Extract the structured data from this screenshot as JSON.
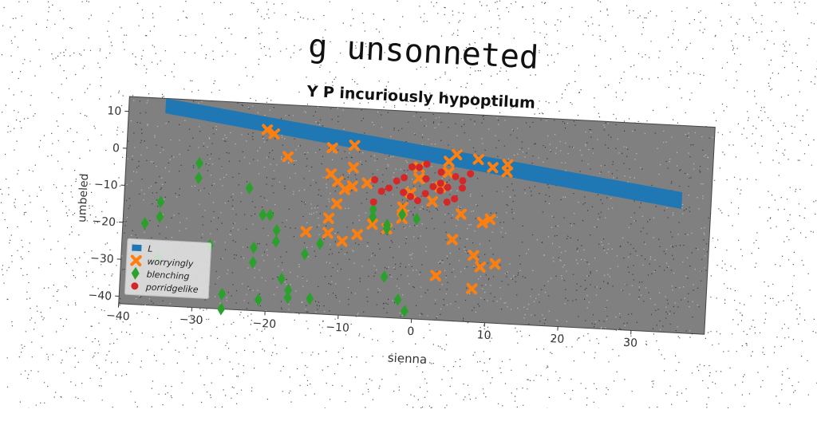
{
  "chart_data": {
    "type": "scatter",
    "title": "g unsonneted",
    "subtitle": "Y P incuriously hypoptilum",
    "xlabel": "sienna",
    "ylabel": "umbeled",
    "xlim": [
      -40,
      40
    ],
    "ylim": [
      -42,
      14
    ],
    "x_ticks": [
      -40,
      -30,
      -20,
      -10,
      0,
      10,
      20,
      30
    ],
    "y_ticks": [
      10,
      0,
      -10,
      -20,
      -30,
      -40
    ],
    "grid": false,
    "legend_position": "lower-left",
    "series": [
      {
        "name": "L",
        "kind": "band",
        "color": "#1f77b4",
        "x": [
          -35,
          36
        ],
        "y_upper": [
          14,
          -4
        ],
        "y_lower": [
          10,
          -8.5
        ]
      },
      {
        "name": "worryingly",
        "kind": "scatter",
        "marker": "x",
        "color": "#ff7f0e",
        "points": [
          [
            -21,
            7
          ],
          [
            -20,
            6
          ],
          [
            -18,
            0
          ],
          [
            -12,
            3
          ],
          [
            -9,
            4
          ],
          [
            -9,
            -2
          ],
          [
            -12,
            -4
          ],
          [
            -11,
            -6
          ],
          [
            -10,
            -8
          ],
          [
            -9,
            -7
          ],
          [
            -7,
            -6
          ],
          [
            -11,
            -12
          ],
          [
            -12,
            -16
          ],
          [
            -15,
            -20
          ],
          [
            -12,
            -20
          ],
          [
            -10,
            -22
          ],
          [
            -8,
            -20
          ],
          [
            -6,
            -17
          ],
          [
            -4,
            -18
          ],
          [
            -2,
            -15
          ],
          [
            -1,
            -8
          ],
          [
            0,
            -1
          ],
          [
            0,
            -4
          ],
          [
            2,
            -10
          ],
          [
            4,
            -2
          ],
          [
            5,
            3
          ],
          [
            4,
            1
          ],
          [
            3,
            -6
          ],
          [
            6,
            -13
          ],
          [
            8,
            2
          ],
          [
            10,
            0
          ],
          [
            12,
            -1
          ],
          [
            12,
            1
          ],
          [
            10,
            -14
          ],
          [
            9,
            -15
          ],
          [
            5,
            -20
          ],
          [
            8,
            -24
          ],
          [
            9,
            -27
          ],
          [
            11,
            -26
          ],
          [
            3,
            -30
          ],
          [
            8,
            -33
          ],
          [
            -2,
            -12
          ]
        ]
      },
      {
        "name": "blenching",
        "kind": "scatter",
        "marker": "D",
        "color": "#2ca02c",
        "points": [
          [
            -37,
            -20
          ],
          [
            -35,
            -14
          ],
          [
            -35,
            -18
          ],
          [
            -35,
            -29
          ],
          [
            -30,
            -3
          ],
          [
            -30,
            -7
          ],
          [
            -28,
            -25
          ],
          [
            -26,
            -38
          ],
          [
            -26,
            -42
          ],
          [
            -23,
            -9
          ],
          [
            -22,
            -25
          ],
          [
            -22,
            -29
          ],
          [
            -21,
            -16
          ],
          [
            -21,
            -39
          ],
          [
            -20,
            -16
          ],
          [
            -19,
            -20
          ],
          [
            -19,
            -23
          ],
          [
            -18,
            -33
          ],
          [
            -17,
            -36
          ],
          [
            -17,
            -38
          ],
          [
            -15,
            -26
          ],
          [
            -14,
            -38
          ],
          [
            -13,
            -23
          ],
          [
            -6,
            -13
          ],
          [
            -6,
            -15
          ],
          [
            -4,
            -17
          ],
          [
            -4,
            -18
          ],
          [
            -2,
            -37
          ],
          [
            -2,
            -14
          ],
          [
            -4,
            -31
          ],
          [
            0,
            -15
          ],
          [
            -1,
            -40
          ]
        ]
      },
      {
        "name": "porridgelike",
        "kind": "scatter",
        "marker": "o",
        "color": "#d62728",
        "points": [
          [
            -6,
            -5
          ],
          [
            -5,
            -8
          ],
          [
            -4,
            -7
          ],
          [
            -3,
            -5
          ],
          [
            -2,
            -4
          ],
          [
            -1,
            -1
          ],
          [
            0,
            -1
          ],
          [
            1,
            0
          ],
          [
            1,
            -4
          ],
          [
            2,
            -6
          ],
          [
            3,
            -5
          ],
          [
            3,
            -7
          ],
          [
            4,
            -6
          ],
          [
            5,
            -3
          ],
          [
            6,
            -6
          ],
          [
            6,
            -4
          ],
          [
            7,
            -2
          ],
          [
            5,
            -9
          ],
          [
            4,
            -10
          ],
          [
            -1,
            -9
          ],
          [
            0,
            -10
          ],
          [
            -2,
            -8
          ],
          [
            3,
            -2
          ],
          [
            1,
            -8
          ],
          [
            -6,
            -11
          ]
        ]
      }
    ]
  }
}
